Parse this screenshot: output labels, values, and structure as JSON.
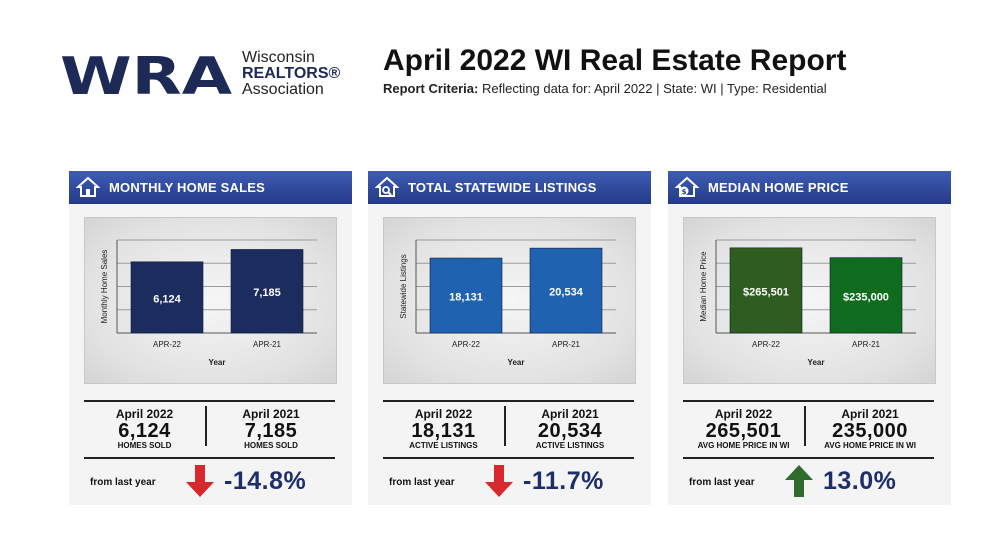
{
  "header": {
    "logo_letters": "WRA",
    "org_line1": "Wisconsin",
    "org_line2": "REALTORS®",
    "org_line3": "Association",
    "title": "April 2022 WI Real Estate Report",
    "criteria_label": "Report Criteria:",
    "criteria_text": " Reflecting data for: April 2022 | State: WI | Type: Residential"
  },
  "cards": [
    {
      "title": "MONTHLY HOME SALES",
      "icon": "house-icon",
      "current": {
        "period": "April 2022",
        "value": "6,124",
        "caption": "HOMES SOLD"
      },
      "prior": {
        "period": "April 2021",
        "value": "7,185",
        "caption": "HOMES SOLD"
      },
      "from_label": "from last year",
      "change": "-14.8%",
      "direction": "down",
      "arrow_color": "#d9272e"
    },
    {
      "title": "TOTAL STATEWIDE LISTINGS",
      "icon": "house-search-icon",
      "current": {
        "period": "April 2022",
        "value": "18,131",
        "caption": "ACTIVE LISTINGS"
      },
      "prior": {
        "period": "April 2021",
        "value": "20,534",
        "caption": "ACTIVE LISTINGS"
      },
      "from_label": "from last year",
      "change": "-11.7%",
      "direction": "down",
      "arrow_color": "#d9272e"
    },
    {
      "title": "MEDIAN HOME PRICE",
      "icon": "house-dollar-icon",
      "current": {
        "period": "April 2022",
        "value": "265,501",
        "caption": "AVG HOME PRICE IN WI"
      },
      "prior": {
        "period": "April 2021",
        "value": "235,000",
        "caption": "AVG HOME PRICE IN WI"
      },
      "from_label": "from last year",
      "change": "13.0%",
      "direction": "up",
      "arrow_color": "#2e6b2c"
    }
  ],
  "chart_data": [
    {
      "type": "bar",
      "categories": [
        "APR-22",
        "APR-21"
      ],
      "values": [
        6124,
        7185
      ],
      "value_labels": [
        "6,124",
        "7,185"
      ],
      "xlabel": "Year",
      "ylabel": "Monthly Home Sales",
      "ylim": [
        0,
        8000
      ],
      "grid": true,
      "bar_colors": [
        "#1d2c5e",
        "#1d2c5e"
      ]
    },
    {
      "type": "bar",
      "categories": [
        "APR-22",
        "APR-21"
      ],
      "values": [
        18131,
        20534
      ],
      "value_labels": [
        "18,131",
        "20,534"
      ],
      "xlabel": "Year",
      "ylabel": "Statewide Listings",
      "ylim": [
        0,
        22500
      ],
      "grid": true,
      "bar_colors": [
        "#1f62b0",
        "#1f62b0"
      ]
    },
    {
      "type": "bar",
      "categories": [
        "APR-22",
        "APR-21"
      ],
      "values": [
        265501,
        235000
      ],
      "value_labels": [
        "$265,501",
        "$235,000"
      ],
      "xlabel": "Year",
      "ylabel": "Median Home Price",
      "ylim": [
        0,
        290000
      ],
      "grid": true,
      "bar_colors": [
        "#2f5d1f",
        "#0f6b1e"
      ]
    }
  ]
}
